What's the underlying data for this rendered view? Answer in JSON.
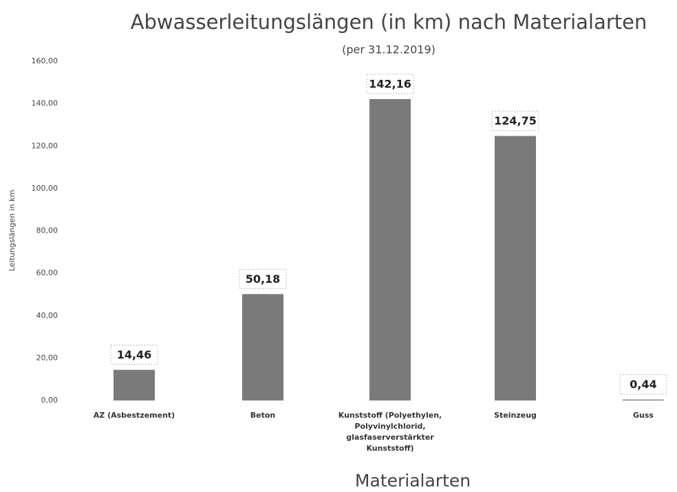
{
  "chart_data": {
    "type": "bar",
    "title": "Abwasserleitungslängen (in km) nach Materialarten",
    "subtitle": "(per 31.12.2019)",
    "y_label": "Leitungslängen in km",
    "x_label": "Materialarten",
    "categories": [
      "AZ (Asbestzement)",
      "Beton",
      "Kunststoff (Polyethylen, Polyvinylchlorid, glasfaserverstärkter Kunststoff)",
      "Steinzeug",
      "Guss"
    ],
    "values": [
      14.46,
      50.18,
      142.16,
      124.75,
      0.44
    ],
    "value_labels": [
      "14,46",
      "50,18",
      "142,16",
      "124,75",
      "0,44"
    ],
    "color": "#7a7a7a",
    "ylim": [
      0,
      160
    ],
    "yticks": [
      {
        "value": 0,
        "label": "0,00"
      },
      {
        "value": 20,
        "label": "20,00"
      },
      {
        "value": 40,
        "label": "40,00"
      },
      {
        "value": 60,
        "label": "60,00"
      },
      {
        "value": 80,
        "label": "80,00"
      },
      {
        "value": 100,
        "label": "100,00"
      },
      {
        "value": 120,
        "label": "120,00"
      },
      {
        "value": 140,
        "label": "140,00"
      },
      {
        "value": 160,
        "label": "160,00"
      }
    ],
    "grid": false
  }
}
